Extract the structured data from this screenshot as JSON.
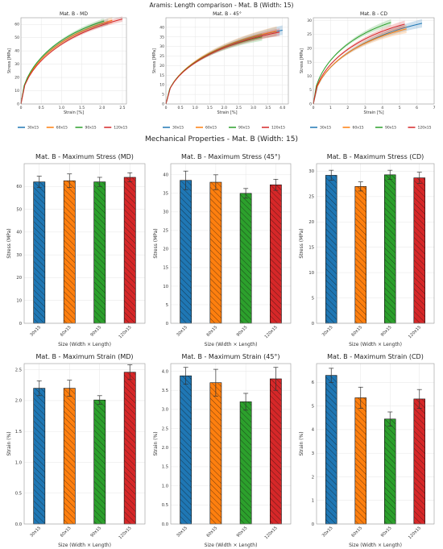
{
  "figure": {
    "suptitle": "Aramis: Length comparison - Mat. B (Width: 15)",
    "section_title": "Mechanical Properties - Mat. B (Width: 15)",
    "colors": {
      "30x15": "#1f77b4",
      "60x15": "#ff7f0e",
      "90x15": "#2ca02c",
      "120x15": "#d62728"
    }
  },
  "chart_data": [
    {
      "type": "line",
      "title": "Mat. B - MD",
      "xlabel": "Strain [%]",
      "ylabel": "Stress [MPa]",
      "xlim": [
        0,
        2.6
      ],
      "ylim": [
        0,
        65
      ],
      "xticks": [
        0,
        0.5,
        1.0,
        1.5,
        2.0,
        2.5
      ],
      "yticks": [
        0,
        10,
        20,
        30,
        40,
        50,
        60
      ],
      "xtick_labels": [
        "0",
        "0.5",
        "1.0",
        "1.5",
        "2.0",
        "2.5"
      ],
      "ytick_labels": [
        "0",
        "10",
        "20",
        "30",
        "40",
        "50",
        "60"
      ],
      "legend": [
        "30x15",
        "60x15",
        "90x15",
        "120x15"
      ],
      "legend_position": "below",
      "grid": true,
      "series": [
        {
          "name": "30x15",
          "end_x": 2.15,
          "end_y": 62,
          "band": 2.5
        },
        {
          "name": "60x15",
          "end_x": 2.25,
          "end_y": 63,
          "band": 2.5
        },
        {
          "name": "90x15",
          "end_x": 2.05,
          "end_y": 62.5,
          "band": 2.0
        },
        {
          "name": "120x15",
          "end_x": 2.5,
          "end_y": 64,
          "band": 2.0
        }
      ]
    },
    {
      "type": "line",
      "title": "Mat. B - 45°",
      "xlabel": "Strain [%]",
      "ylabel": "Stress [MPa]",
      "xlim": [
        0,
        4.2
      ],
      "ylim": [
        0,
        45
      ],
      "xticks": [
        0,
        0.5,
        1.0,
        1.5,
        2.0,
        2.5,
        3.0,
        3.5,
        4.0
      ],
      "yticks": [
        0,
        5,
        10,
        15,
        20,
        25,
        30,
        35,
        40
      ],
      "xtick_labels": [
        "0",
        "0.5",
        "1.0",
        "1.5",
        "2.0",
        "2.5",
        "3.0",
        "3.5",
        "4.0"
      ],
      "ytick_labels": [
        "0",
        "5",
        "10",
        "15",
        "20",
        "25",
        "30",
        "35",
        "40"
      ],
      "legend": [
        "30x15",
        "60x15",
        "90x15",
        "120x15"
      ],
      "legend_position": "below",
      "grid": true,
      "series": [
        {
          "name": "30x15",
          "end_x": 4.0,
          "end_y": 38.5,
          "band": 2.5
        },
        {
          "name": "60x15",
          "end_x": 3.8,
          "end_y": 38.0,
          "band": 2.5
        },
        {
          "name": "90x15",
          "end_x": 3.3,
          "end_y": 35.0,
          "band": 2.0
        },
        {
          "name": "120x15",
          "end_x": 3.9,
          "end_y": 37.5,
          "band": 2.0
        }
      ]
    },
    {
      "type": "line",
      "title": "Mat. B - CD",
      "xlabel": "Strain [%]",
      "ylabel": "Stress [MPa]",
      "xlim": [
        0,
        7
      ],
      "ylim": [
        0,
        31
      ],
      "xticks": [
        0,
        1,
        2,
        3,
        4,
        5,
        6,
        7
      ],
      "yticks": [
        0,
        5,
        10,
        15,
        20,
        25,
        30
      ],
      "xtick_labels": [
        "0",
        "1",
        "2",
        "3",
        "4",
        "5",
        "6",
        "7"
      ],
      "ytick_labels": [
        "0",
        "5",
        "10",
        "15",
        "20",
        "25",
        "30"
      ],
      "legend": [
        "30x15",
        "60x15",
        "90x15",
        "120x15"
      ],
      "legend_position": "below",
      "grid": true,
      "series": [
        {
          "name": "30x15",
          "end_x": 6.3,
          "end_y": 29.0,
          "band": 1.5
        },
        {
          "name": "60x15",
          "end_x": 5.4,
          "end_y": 27.0,
          "band": 1.5
        },
        {
          "name": "90x15",
          "end_x": 4.5,
          "end_y": 29.3,
          "band": 1.2
        },
        {
          "name": "120x15",
          "end_x": 5.3,
          "end_y": 28.7,
          "band": 1.3
        }
      ]
    },
    {
      "type": "bar",
      "title": "Mat. B - Maximum Stress (MD)",
      "xlabel": "Size (Width × Length)",
      "ylabel": "Stress (MPa)",
      "categories": [
        "30x15",
        "60x15",
        "90x15",
        "120x15"
      ],
      "values": [
        62,
        62.5,
        62,
        64
      ],
      "errors": [
        2.5,
        3,
        2,
        2
      ],
      "ylim": [
        0,
        70
      ],
      "yticks": [
        0,
        10,
        20,
        30,
        40,
        50,
        60
      ],
      "ytick_labels": [
        "0",
        "10",
        "20",
        "30",
        "40",
        "50",
        "60"
      ],
      "grid": true
    },
    {
      "type": "bar",
      "title": "Mat. B - Maximum Stress (45°)",
      "xlabel": "Size (Width × Length)",
      "ylabel": "Stress (MPa)",
      "categories": [
        "30x15",
        "60x15",
        "90x15",
        "120x15"
      ],
      "values": [
        38.5,
        38,
        35,
        37.3
      ],
      "errors": [
        2.5,
        2,
        1.3,
        1.5
      ],
      "ylim": [
        0,
        43
      ],
      "yticks": [
        0,
        5,
        10,
        15,
        20,
        25,
        30,
        35,
        40
      ],
      "ytick_labels": [
        "0",
        "5",
        "10",
        "15",
        "20",
        "25",
        "30",
        "35",
        "40"
      ],
      "grid": true
    },
    {
      "type": "bar",
      "title": "Mat. B - Maximum Stress (CD)",
      "xlabel": "Size (Width × Length)",
      "ylabel": "Stress (MPa)",
      "categories": [
        "30x15",
        "60x15",
        "90x15",
        "120x15"
      ],
      "values": [
        29.2,
        27,
        29.3,
        28.7
      ],
      "errors": [
        1,
        0.9,
        0.9,
        1.1
      ],
      "ylim": [
        0,
        31.5
      ],
      "yticks": [
        0,
        5,
        10,
        15,
        20,
        25,
        30
      ],
      "ytick_labels": [
        "0",
        "5",
        "10",
        "15",
        "20",
        "25",
        "30"
      ],
      "grid": true
    },
    {
      "type": "bar",
      "title": "Mat. B - Maximum Strain (MD)",
      "xlabel": "Size (Width × Length)",
      "ylabel": "Strain (%)",
      "categories": [
        "30x15",
        "60x15",
        "90x15",
        "120x15"
      ],
      "values": [
        2.2,
        2.2,
        2.01,
        2.46
      ],
      "errors": [
        0.12,
        0.13,
        0.07,
        0.12
      ],
      "ylim": [
        0,
        2.6
      ],
      "yticks": [
        0,
        0.5,
        1.0,
        1.5,
        2.0,
        2.5
      ],
      "ytick_labels": [
        "0.0",
        "0.5",
        "1.0",
        "1.5",
        "2.0",
        "2.5"
      ],
      "grid": true
    },
    {
      "type": "bar",
      "title": "Mat. B - Maximum Strain (45°)",
      "xlabel": "Size (Width × Length)",
      "ylabel": "Strain (%)",
      "categories": [
        "30x15",
        "60x15",
        "90x15",
        "120x15"
      ],
      "values": [
        3.88,
        3.7,
        3.2,
        3.8
      ],
      "errors": [
        0.22,
        0.35,
        0.22,
        0.3
      ],
      "ylim": [
        0,
        4.2
      ],
      "yticks": [
        0,
        0.5,
        1.0,
        1.5,
        2.0,
        2.5,
        3.0,
        3.5,
        4.0
      ],
      "ytick_labels": [
        "0.0",
        "0.5",
        "1.0",
        "1.5",
        "2.0",
        "2.5",
        "3.0",
        "3.5",
        "4.0"
      ],
      "grid": true
    },
    {
      "type": "bar",
      "title": "Mat. B - Maximum Strain (CD)",
      "xlabel": "Size (Width × Length)",
      "ylabel": "Strain (%)",
      "categories": [
        "30x15",
        "60x15",
        "90x15",
        "120x15"
      ],
      "values": [
        6.3,
        5.35,
        4.45,
        5.3
      ],
      "errors": [
        0.3,
        0.45,
        0.3,
        0.4
      ],
      "ylim": [
        0,
        6.8
      ],
      "yticks": [
        0,
        1,
        2,
        3,
        4,
        5,
        6
      ],
      "ytick_labels": [
        "0",
        "1",
        "2",
        "3",
        "4",
        "5",
        "6"
      ],
      "grid": true
    }
  ]
}
